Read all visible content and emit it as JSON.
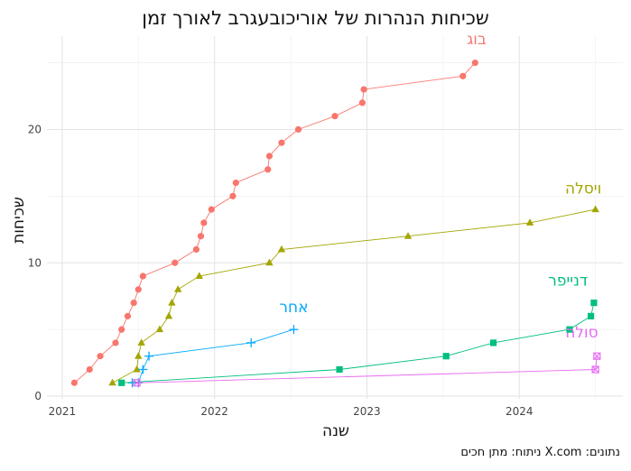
{
  "chart_data": {
    "type": "line",
    "title": "שכיחות הנהרות של אוריכובעגרב לאורך זמן",
    "xlabel": "שנה",
    "ylabel": "שכיחות",
    "caption": "נתונים: X.com   ניתוח: מתן חכים",
    "xlim": [
      2020.9,
      2024.68
    ],
    "ylim": [
      -0.2,
      27
    ],
    "x_ticks": [
      2021,
      2022,
      2023,
      2024
    ],
    "y_ticks": [
      0,
      10,
      20
    ],
    "grid": true,
    "legend": "direct-labels",
    "series": [
      {
        "name": "בוג",
        "color": "#F8766D",
        "marker": "circle",
        "label_x": 2023.72,
        "label_y": 26.4,
        "x": [
          2021.08,
          2021.18,
          2021.25,
          2021.35,
          2021.39,
          2021.43,
          2021.47,
          2021.5,
          2021.53,
          2021.74,
          2021.88,
          2021.91,
          2021.93,
          2021.98,
          2022.12,
          2022.14,
          2022.35,
          2022.36,
          2022.44,
          2022.55,
          2022.79,
          2022.97,
          2022.98,
          2023.63,
          2023.71
        ],
        "y": [
          1,
          2,
          3,
          4,
          5,
          6,
          7,
          8,
          9,
          10,
          11,
          12,
          13,
          14,
          15,
          16,
          17,
          18,
          19,
          20,
          21,
          22,
          23,
          24,
          25
        ]
      },
      {
        "name": "ויסלה",
        "color": "#A3A500",
        "marker": "triangle",
        "label_x": 2024.42,
        "label_y": 15.2,
        "x": [
          2021.33,
          2021.49,
          2021.5,
          2021.52,
          2021.64,
          2021.7,
          2021.72,
          2021.76,
          2021.9,
          2022.36,
          2022.44,
          2023.27,
          2024.07,
          2024.5
        ],
        "y": [
          1,
          2,
          3,
          4,
          5,
          6,
          7,
          8,
          9,
          10,
          11,
          12,
          13,
          14
        ]
      },
      {
        "name": "אחר",
        "color": "#00A9FF",
        "marker": "plus",
        "label_x": 2022.52,
        "label_y": 6.3,
        "x": [
          2021.46,
          2021.5,
          2021.53,
          2021.57,
          2022.24,
          2022.52
        ],
        "y": [
          1,
          1,
          2,
          3,
          4,
          5
        ]
      },
      {
        "name": "דנייפר",
        "color": "#00BF7D",
        "marker": "square",
        "label_x": 2024.32,
        "label_y": 8.3,
        "x": [
          2021.39,
          2022.82,
          2023.52,
          2023.83,
          2024.33,
          2024.47,
          2024.49
        ],
        "y": [
          1,
          2,
          3,
          4,
          5,
          6,
          7
        ]
      },
      {
        "name": "סולה",
        "color": "#E76BF3",
        "marker": "boxx",
        "label_x": 2024.41,
        "label_y": 4.4,
        "x": [
          2021.49,
          2024.5,
          2024.51
        ],
        "y": [
          1,
          2,
          3
        ]
      }
    ]
  }
}
